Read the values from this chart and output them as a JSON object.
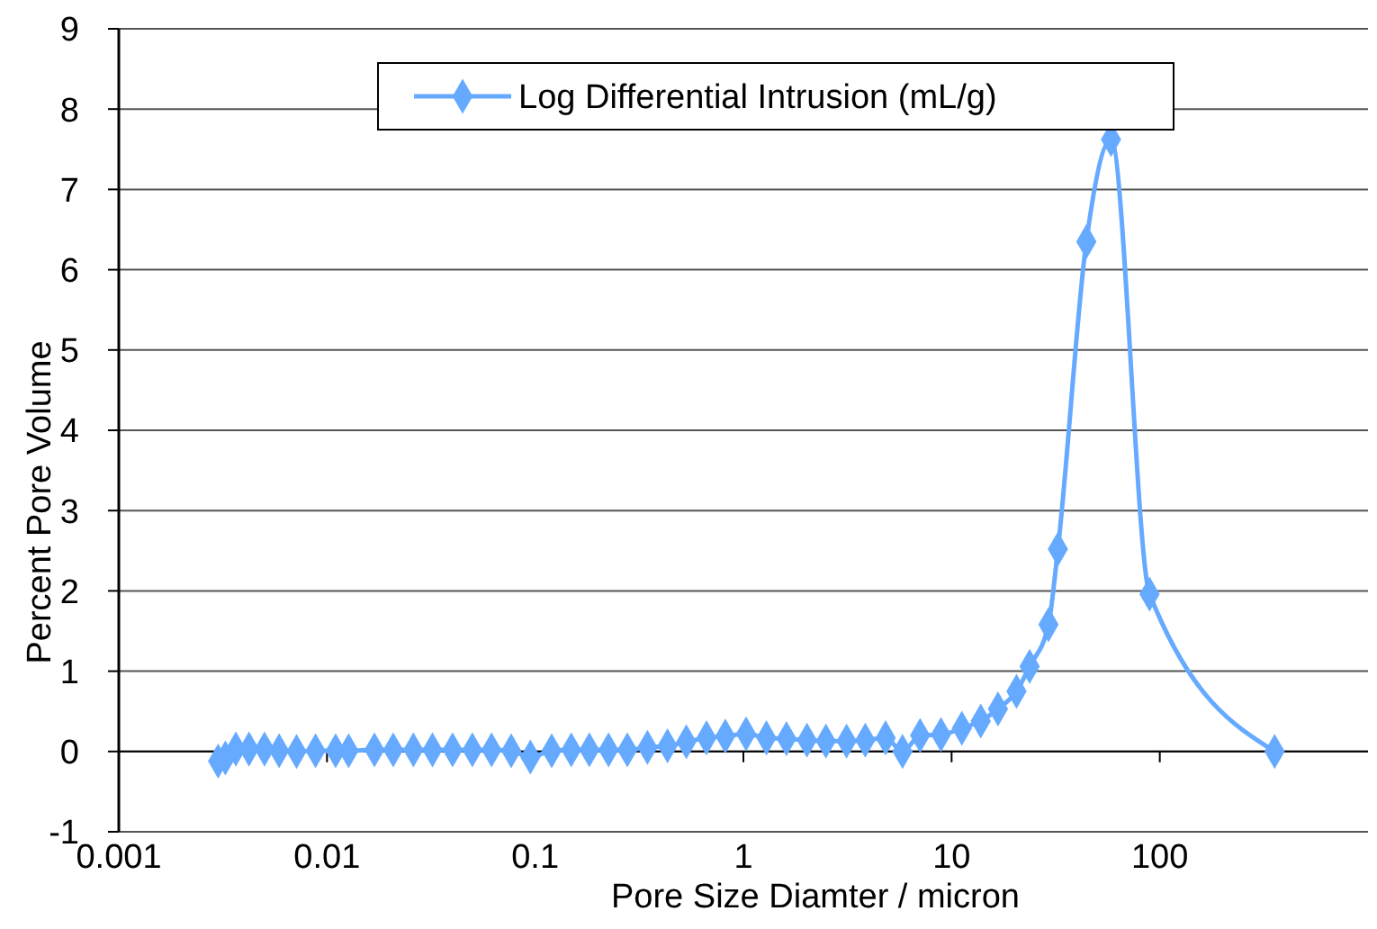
{
  "chart_data": {
    "type": "line",
    "xlabel": "Pore Size Diamter / micron",
    "ylabel": "Percent Pore Volume",
    "log": "x",
    "xlim": [
      0.001,
      1000
    ],
    "xticks": [
      0.001,
      0.01,
      0.1,
      1,
      10,
      100
    ],
    "ylim": [
      -1,
      9
    ],
    "yticks": [
      -1,
      0,
      1,
      2,
      3,
      4,
      5,
      6,
      7,
      8,
      9
    ],
    "grid": "y",
    "legend": "top",
    "marker": "diamond",
    "line_style": "solid",
    "series": [
      {
        "name": "Log Differential Intrusion (mL/g)",
        "color": "#66aaff",
        "x": [
          0.003,
          0.00325,
          0.00365,
          0.00422,
          0.00501,
          0.00589,
          0.00714,
          0.00881,
          0.011,
          0.0127,
          0.0169,
          0.0208,
          0.026,
          0.0321,
          0.0401,
          0.0499,
          0.0617,
          0.0767,
          0.0948,
          0.12,
          0.149,
          0.182,
          0.225,
          0.277,
          0.346,
          0.432,
          0.532,
          0.665,
          0.819,
          1.03,
          1.29,
          1.61,
          2.02,
          2.49,
          3.13,
          3.85,
          4.82,
          5.81,
          7.06,
          8.89,
          11.2,
          13.8,
          16.7,
          20.5,
          23.7,
          29.2,
          32.4,
          44.4,
          58.3,
          89.3,
          356
        ],
        "values": [
          -0.12,
          -0.08,
          0.03,
          0.03,
          0.03,
          0.01,
          0.0,
          0.01,
          0.01,
          0.01,
          0.02,
          0.02,
          0.02,
          0.02,
          0.02,
          0.02,
          0.02,
          0.01,
          -0.07,
          0.01,
          0.02,
          0.02,
          0.02,
          0.02,
          0.05,
          0.07,
          0.12,
          0.17,
          0.19,
          0.22,
          0.17,
          0.16,
          0.14,
          0.13,
          0.13,
          0.14,
          0.17,
          0.0,
          0.2,
          0.21,
          0.29,
          0.38,
          0.53,
          0.75,
          1.06,
          1.58,
          2.52,
          6.35,
          7.62,
          1.96,
          0.0
        ]
      }
    ]
  }
}
